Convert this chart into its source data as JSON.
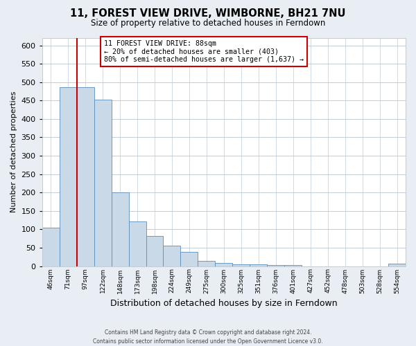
{
  "title": "11, FOREST VIEW DRIVE, WIMBORNE, BH21 7NU",
  "subtitle": "Size of property relative to detached houses in Ferndown",
  "xlabel": "Distribution of detached houses by size in Ferndown",
  "ylabel": "Number of detached properties",
  "bin_labels": [
    "46sqm",
    "71sqm",
    "97sqm",
    "122sqm",
    "148sqm",
    "173sqm",
    "198sqm",
    "224sqm",
    "249sqm",
    "275sqm",
    "300sqm",
    "325sqm",
    "351sqm",
    "376sqm",
    "401sqm",
    "427sqm",
    "452sqm",
    "478sqm",
    "503sqm",
    "528sqm",
    "554sqm"
  ],
  "bar_heights": [
    105,
    487,
    487,
    452,
    200,
    121,
    81,
    55,
    38,
    14,
    8,
    5,
    5,
    2,
    2,
    0,
    0,
    0,
    0,
    0,
    6
  ],
  "bar_color": "#c9d9e8",
  "bar_edge_color": "#5b8db8",
  "vline_x_index": 1.5,
  "vline_color": "#cc0000",
  "ylim": [
    0,
    620
  ],
  "yticks": [
    0,
    50,
    100,
    150,
    200,
    250,
    300,
    350,
    400,
    450,
    500,
    550,
    600
  ],
  "box_text_line1": "11 FOREST VIEW DRIVE: 88sqm",
  "box_text_line2": "← 20% of detached houses are smaller (403)",
  "box_text_line3": "80% of semi-detached houses are larger (1,637) →",
  "box_color": "#ffffff",
  "box_edge_color": "#cc0000",
  "footer_line1": "Contains HM Land Registry data © Crown copyright and database right 2024.",
  "footer_line2": "Contains public sector information licensed under the Open Government Licence v3.0.",
  "background_color": "#e8eef4",
  "plot_background_color": "#ffffff",
  "grid_color": "#c0ccd8"
}
